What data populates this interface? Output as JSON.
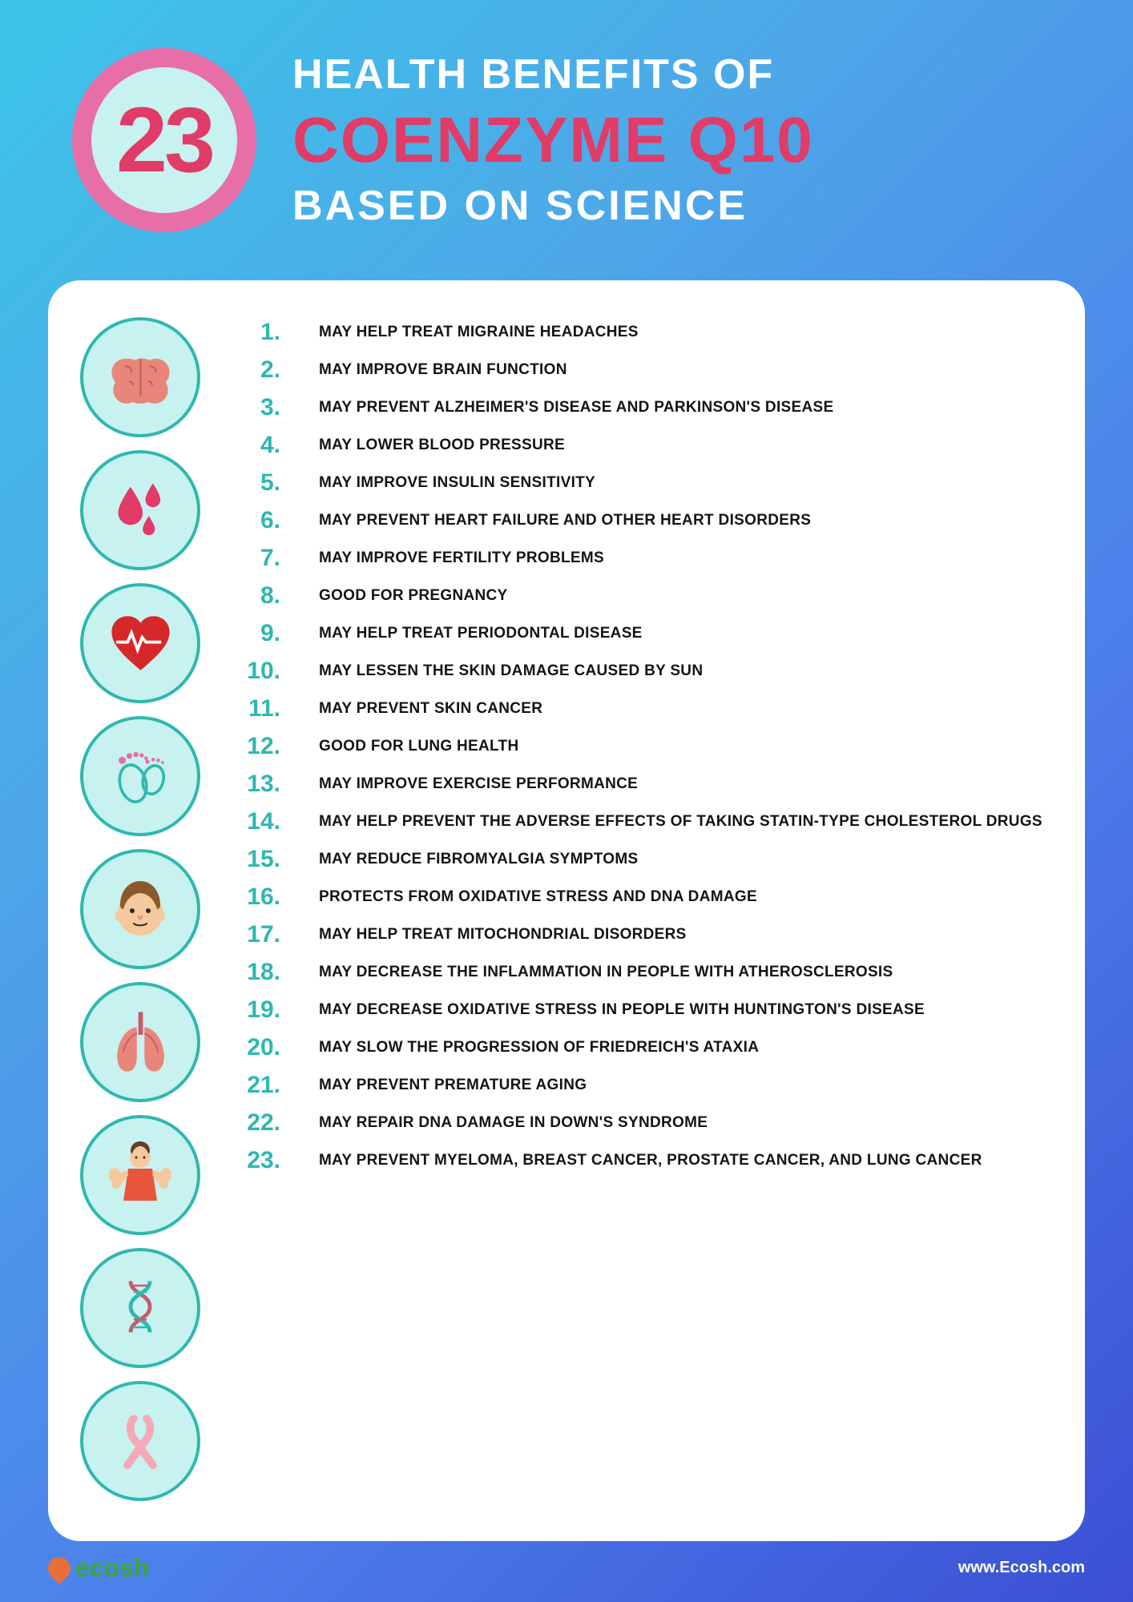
{
  "header": {
    "badge_number": "23",
    "line1": "HEALTH BENEFITS OF",
    "line2": "COENZYME Q10",
    "line3": "BASED ON SCIENCE"
  },
  "styling": {
    "background_gradient": [
      "#3cc5e8",
      "#4da8e8",
      "#4c7eeb",
      "#3b4fd4"
    ],
    "badge_outer_color": "#e86ea8",
    "badge_inner_color": "#c8f2ef",
    "badge_number_color": "#e13b67",
    "title_white": "#ffffff",
    "title_accent": "#e13b67",
    "card_bg": "#ffffff",
    "card_radius": 40,
    "icon_bg": "#c8f2ef",
    "icon_border": "#2eb8b0",
    "number_color": "#2eb8b0",
    "benefit_color": "#141414",
    "logo_color": "#3aa83a",
    "title_fontsize_small": 52,
    "title_fontsize_large": 80,
    "badge_number_fontsize": 115,
    "number_fontsize": 30,
    "benefit_fontsize": 19
  },
  "icons": [
    {
      "name": "brain-icon",
      "svg": "brain"
    },
    {
      "name": "blood-drops-icon",
      "svg": "drops"
    },
    {
      "name": "heart-ecg-icon",
      "svg": "heart"
    },
    {
      "name": "baby-feet-icon",
      "svg": "feet"
    },
    {
      "name": "face-icon",
      "svg": "face"
    },
    {
      "name": "lungs-icon",
      "svg": "lungs"
    },
    {
      "name": "muscle-person-icon",
      "svg": "muscle"
    },
    {
      "name": "dna-icon",
      "svg": "dna"
    },
    {
      "name": "ribbon-icon",
      "svg": "ribbon"
    }
  ],
  "benefits": [
    {
      "n": "1.",
      "text": "MAY HELP TREAT MIGRAINE HEADACHES"
    },
    {
      "n": "2.",
      "text": "MAY IMPROVE BRAIN FUNCTION"
    },
    {
      "n": "3.",
      "text": "MAY PREVENT  ALZHEIMER'S DISEASE AND PARKINSON'S DISEASE"
    },
    {
      "n": "4.",
      "text": "MAY LOWER BLOOD PRESSURE"
    },
    {
      "n": "5.",
      "text": "MAY IMPROVE INSULIN SENSITIVITY"
    },
    {
      "n": "6.",
      "text": "MAY PREVENT HEART FAILURE AND OTHER HEART DISORDERS"
    },
    {
      "n": "7.",
      "text": "MAY IMPROVE FERTILITY PROBLEMS"
    },
    {
      "n": "8.",
      "text": "GOOD FOR PREGNANCY"
    },
    {
      "n": "9.",
      "text": "MAY HELP TREAT PERIODONTAL DISEASE"
    },
    {
      "n": "10.",
      "text": "MAY LESSEN THE SKIN DAMAGE CAUSED BY SUN"
    },
    {
      "n": "11.",
      "text": "MAY PREVENT SKIN CANCER"
    },
    {
      "n": "12.",
      "text": "GOOD FOR LUNG HEALTH"
    },
    {
      "n": "13.",
      "text": "MAY IMPROVE EXERCISE PERFORMANCE"
    },
    {
      "n": "14.",
      "text": "MAY HELP PREVENT THE ADVERSE EFFECTS OF TAKING STATIN-TYPE CHOLESTEROL DRUGS"
    },
    {
      "n": "15.",
      "text": "MAY REDUCE FIBROMYALGIA SYMPTOMS"
    },
    {
      "n": "16.",
      "text": "PROTECTS FROM OXIDATIVE STRESS AND DNA DAMAGE"
    },
    {
      "n": "17.",
      "text": "MAY HELP TREAT MITOCHONDRIAL DISORDERS"
    },
    {
      "n": "18.",
      "text": "MAY DECREASE THE INFLAMMATION  IN PEOPLE WITH ATHEROSCLEROSIS"
    },
    {
      "n": "19.",
      "text": "MAY DECREASE OXIDATIVE STRESS IN PEOPLE WITH HUNTINGTON'S DISEASE"
    },
    {
      "n": "20.",
      "text": "MAY SLOW THE PROGRESSION OF FRIEDREICH'S ATAXIA"
    },
    {
      "n": "21.",
      "text": "MAY PREVENT PREMATURE AGING"
    },
    {
      "n": "22.",
      "text": "MAY REPAIR DNA DAMAGE IN DOWN'S SYNDROME"
    },
    {
      "n": "23.",
      "text": "MAY PREVENT MYELOMA, BREAST CANCER, PROSTATE CANCER, AND LUNG CANCER"
    }
  ],
  "footer": {
    "logo_text": "ecosh",
    "url": "www.Ecosh.com"
  }
}
